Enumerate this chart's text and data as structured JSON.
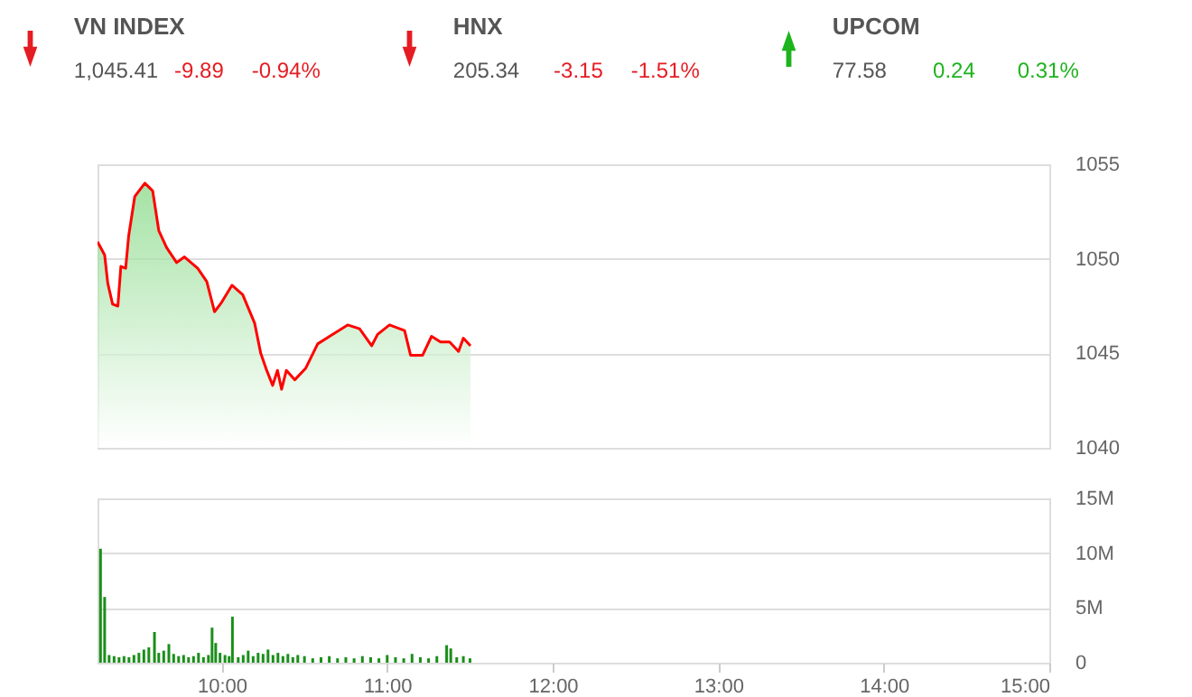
{
  "chart_data": [
    {
      "type": "other",
      "categories": [
        "VN INDEX",
        "HNX",
        "UPCOM"
      ],
      "series": [
        {
          "color": "#555555",
          "values": [
            1045.41,
            205.34,
            77.58
          ],
          "value_labels": [
            "1,045.41",
            "205.34",
            "77.58"
          ]
        },
        {
          "colors": [
            "#e51c23",
            "#e51c23",
            "#1db31d"
          ],
          "values": [
            -9.89,
            -3.15,
            0.24
          ],
          "value_labels": [
            "-9.89",
            "-3.15",
            "0.24"
          ]
        },
        {
          "colors": [
            "#e51c23",
            "#e51c23",
            "#1db31d"
          ],
          "values": [
            -0.94,
            -1.51,
            0.31
          ],
          "value_labels": [
            "-0.94%",
            "-1.51%",
            "0.31%"
          ]
        }
      ]
    },
    {
      "type": "area",
      "xlim": [
        9.25,
        15
      ],
      "ylim": [
        1040,
        1055
      ],
      "yticks": [
        1040,
        1045,
        1050,
        1055
      ],
      "grid": "y",
      "tick_labels": "y",
      "x": [
        9.25,
        9.293,
        9.312,
        9.341,
        9.373,
        9.391,
        9.42,
        9.438,
        9.475,
        9.536,
        9.583,
        9.62,
        9.667,
        9.728,
        9.775,
        9.855,
        9.91,
        9.957,
        10.0,
        10.062,
        10.127,
        10.199,
        10.236,
        10.272,
        10.308,
        10.337,
        10.362,
        10.391,
        10.442,
        10.507,
        10.58,
        10.652,
        10.761,
        10.833,
        10.906,
        10.942,
        11.014,
        11.105,
        11.141,
        11.214,
        11.268,
        11.322,
        11.377,
        11.431,
        11.46,
        11.503
      ],
      "series": [
        {
          "color": "#ff0000",
          "values": [
            1050.9,
            1050.2,
            1048.7,
            1047.6,
            1047.5,
            1049.6,
            1049.5,
            1051.2,
            1053.3,
            1054.0,
            1053.6,
            1051.5,
            1050.6,
            1049.8,
            1050.1,
            1049.5,
            1048.8,
            1047.2,
            1047.7,
            1048.6,
            1048.1,
            1046.6,
            1045.0,
            1044.1,
            1043.3,
            1044.1,
            1043.1,
            1044.1,
            1043.6,
            1044.2,
            1045.5,
            1045.9,
            1046.5,
            1046.3,
            1045.4,
            1046.0,
            1046.5,
            1046.2,
            1044.9,
            1044.9,
            1045.9,
            1045.6,
            1045.6,
            1045.1,
            1045.8,
            1045.4
          ]
        }
      ]
    },
    {
      "type": "bar",
      "xlim": [
        9.25,
        15
      ],
      "xticks": [
        {
          "value": 10,
          "label": "10:00"
        },
        {
          "value": 11,
          "label": "11:00"
        },
        {
          "value": 12,
          "label": "12:00"
        },
        {
          "value": 13,
          "label": "13:00"
        },
        {
          "value": 14,
          "label": "14:00"
        },
        {
          "value": 15,
          "label": "15:00"
        }
      ],
      "ylim": [
        0,
        15000000
      ],
      "yticks": [
        {
          "value": 0,
          "label": "0"
        },
        {
          "value": 5000000,
          "label": "5M"
        },
        {
          "value": 10000000,
          "label": "10M"
        },
        {
          "value": 15000000,
          "label": "15M"
        }
      ],
      "grid": "y",
      "x": [
        9.268,
        9.293,
        9.32,
        9.35,
        9.38,
        9.41,
        9.44,
        9.47,
        9.5,
        9.53,
        9.56,
        9.594,
        9.62,
        9.65,
        9.681,
        9.71,
        9.74,
        9.77,
        9.8,
        9.83,
        9.86,
        9.89,
        9.92,
        9.942,
        9.964,
        9.99,
        10.02,
        10.045,
        10.065,
        10.1,
        10.13,
        10.16,
        10.19,
        10.22,
        10.25,
        10.28,
        10.31,
        10.34,
        10.37,
        10.4,
        10.43,
        10.46,
        10.5,
        10.55,
        10.6,
        10.65,
        10.7,
        10.75,
        10.8,
        10.85,
        10.9,
        10.95,
        11.0,
        11.05,
        11.1,
        11.15,
        11.2,
        11.25,
        11.3,
        11.359,
        11.384,
        11.42,
        11.46,
        11.5
      ],
      "series": [
        {
          "color": "#1a8f1a",
          "values": [
            10400000,
            6000000,
            700000,
            600000,
            500000,
            600000,
            500000,
            700000,
            900000,
            1200000,
            1400000,
            2800000,
            900000,
            1100000,
            1700000,
            800000,
            600000,
            700000,
            500000,
            600000,
            900000,
            500000,
            700000,
            3200000,
            1800000,
            900000,
            700000,
            600000,
            4200000,
            500000,
            700000,
            1100000,
            600000,
            900000,
            800000,
            1200000,
            700000,
            900000,
            600000,
            800000,
            500000,
            700000,
            600000,
            400000,
            500000,
            600000,
            400000,
            500000,
            400000,
            600000,
            500000,
            400000,
            700000,
            500000,
            400000,
            800000,
            500000,
            400000,
            600000,
            1600000,
            1300000,
            500000,
            600000,
            400000
          ]
        }
      ]
    }
  ]
}
